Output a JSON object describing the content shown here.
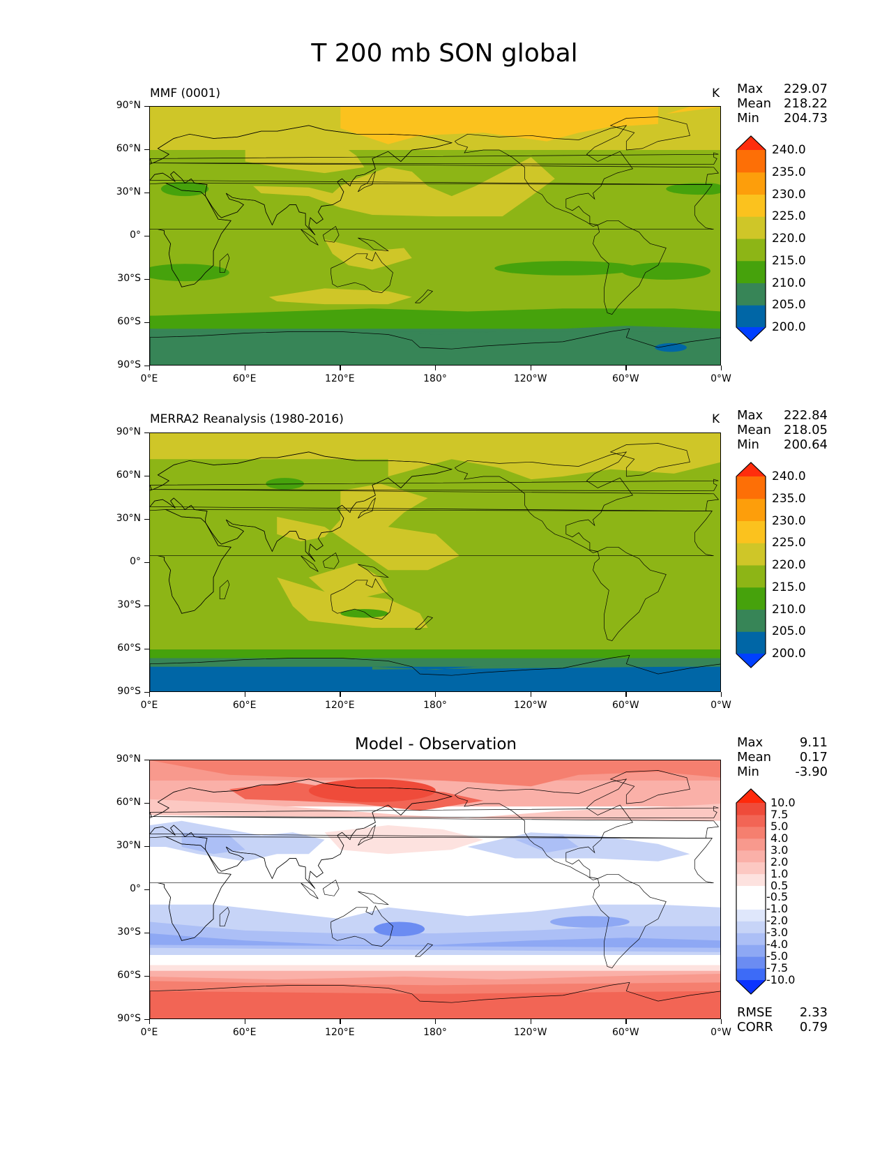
{
  "figure_title": "T 200 mb SON global",
  "lat_ticks": [
    "90°N",
    "60°N",
    "30°N",
    "0°",
    "30°S",
    "60°S",
    "90°S"
  ],
  "lon_ticks": [
    "0°E",
    "60°E",
    "120°E",
    "180°",
    "120°W",
    "60°W",
    "0°W"
  ],
  "colors": {
    "abs_levels": [
      "#0040ff",
      "#0066a6",
      "#378557",
      "#46a20c",
      "#8db516",
      "#cfc628",
      "#fbc21e",
      "#fd9e0b",
      "#fd6f06",
      "#ff2d0d"
    ],
    "diff_levels": [
      "#0b33ff",
      "#3d6bf7",
      "#6b8cf2",
      "#8ea8f4",
      "#acbff6",
      "#c7d4f7",
      "#dfe7fb",
      "#ffffff",
      "#ffffff",
      "#fde2df",
      "#fcc8c2",
      "#fab0a8",
      "#f8998d",
      "#f57f6f",
      "#f26555",
      "#ef4b3a",
      "#ff2a0b"
    ]
  },
  "panels": [
    {
      "label": "MMF (0001)",
      "unit": "K",
      "stats": {
        "max_label": "Max",
        "max": "229.07",
        "mean_label": "Mean",
        "mean": "218.22",
        "min_label": "Min",
        "min": "204.73"
      },
      "colorbar_labels": [
        "240.0",
        "235.0",
        "230.0",
        "225.0",
        "220.0",
        "215.0",
        "210.0",
        "205.0",
        "200.0"
      ]
    },
    {
      "label": "MERRA2 Reanalysis (1980-2016)",
      "unit": "K",
      "stats": {
        "max_label": "Max",
        "max": "222.84",
        "mean_label": "Mean",
        "mean": "218.05",
        "min_label": "Min",
        "min": "200.64"
      },
      "colorbar_labels": [
        "240.0",
        "235.0",
        "230.0",
        "225.0",
        "220.0",
        "215.0",
        "210.0",
        "205.0",
        "200.0"
      ]
    },
    {
      "title": "Model - Observation",
      "stats": {
        "max_label": "Max",
        "max": "9.11",
        "mean_label": "Mean",
        "mean": "0.17",
        "min_label": "Min",
        "min": "-3.90"
      },
      "colorbar_labels": [
        "10.0",
        "7.5",
        "5.0",
        "4.0",
        "3.0",
        "2.0",
        "1.0",
        "0.5",
        "-0.5",
        "-1.0",
        "-2.0",
        "-3.0",
        "-4.0",
        "-5.0",
        "-7.5",
        "-10.0"
      ],
      "rmse_label": "RMSE",
      "rmse": "2.33",
      "corr_label": "CORR",
      "corr": "0.79"
    }
  ]
}
